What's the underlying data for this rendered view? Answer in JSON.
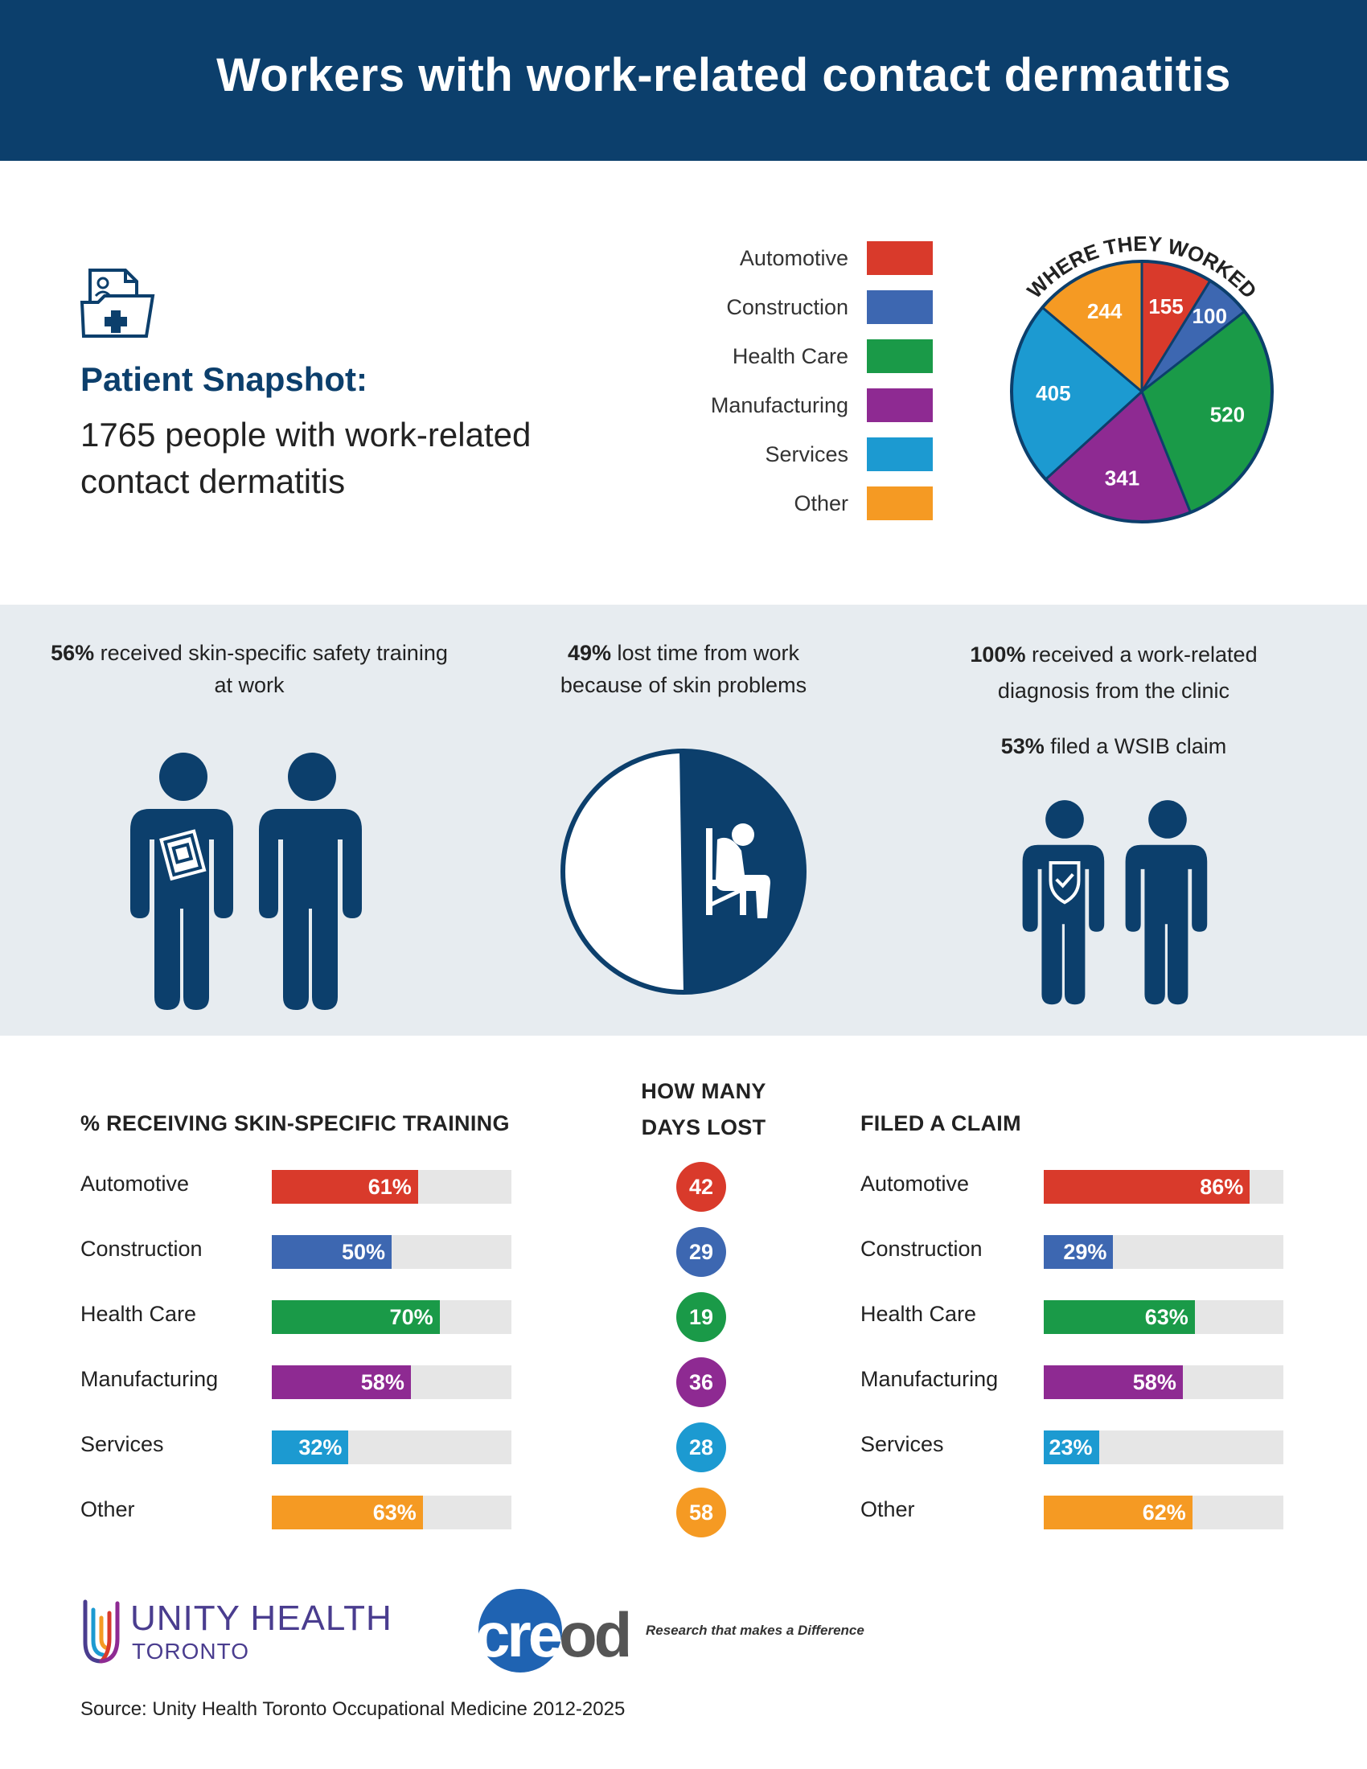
{
  "header": {
    "title": "Workers with work-related contact dermatitis"
  },
  "snapshot": {
    "title": "Patient Snapshot:",
    "text": "1765 people with work-related contact dermatitis"
  },
  "colors": {
    "Automotive": "#d93a2b",
    "Construction": "#3d67b1",
    "Health Care": "#1a9a48",
    "Manufacturing": "#8e2a92",
    "Services": "#1c9ad1",
    "Other": "#f59a23",
    "navy": "#0c3f6c"
  },
  "stats": {
    "training": {
      "pct": "56%",
      "text": " received skin-specific safety training at work"
    },
    "lost_time": {
      "pct": "49%",
      "text": " lost time from work because of skin problems"
    },
    "diagnosis": {
      "pct": "100%",
      "text": " received a work-related diagnosis from the clinic"
    },
    "wsib": {
      "pct": "53%",
      "text": " filed a WSIB claim"
    }
  },
  "icons": [
    "medical-folder-icon",
    "person-with-booklet-icon",
    "person-icon",
    "sitting-distressed-person-icon",
    "person-with-shield-icon"
  ],
  "chart_data": [
    {
      "type": "pie",
      "title": "WHERE THEY WORKED",
      "categories": [
        "Automotive",
        "Construction",
        "Health Care",
        "Manufacturing",
        "Services",
        "Other"
      ],
      "values": [
        155,
        100,
        520,
        341,
        405,
        244
      ],
      "legend": "left"
    },
    {
      "type": "bar",
      "title": "% RECEIVING SKIN-SPECIFIC TRAINING",
      "categories": [
        "Automotive",
        "Construction",
        "Health Care",
        "Manufacturing",
        "Services",
        "Other"
      ],
      "values": [
        61,
        50,
        70,
        58,
        32,
        63
      ],
      "labels": [
        "61%",
        "50%",
        "70%",
        "58%",
        "32%",
        "63%"
      ],
      "ylim": [
        0,
        100
      ]
    },
    {
      "type": "table",
      "title": "HOW MANY DAYS LOST",
      "categories": [
        "Automotive",
        "Construction",
        "Health Care",
        "Manufacturing",
        "Services",
        "Other"
      ],
      "values": [
        42,
        29,
        19,
        36,
        28,
        58
      ]
    },
    {
      "type": "bar",
      "title": "FILED A CLAIM",
      "categories": [
        "Automotive",
        "Construction",
        "Health Care",
        "Manufacturing",
        "Services",
        "Other"
      ],
      "values": [
        86,
        29,
        63,
        58,
        23,
        62
      ],
      "labels": [
        "86%",
        "29%",
        "63%",
        "58%",
        "23%",
        "62%"
      ],
      "ylim": [
        0,
        100
      ]
    }
  ],
  "days_title_lines": [
    "HOW MANY",
    "DAYS LOST"
  ],
  "footer": {
    "unity_main": "UNITY HEALTH",
    "unity_sub": "TORONTO",
    "creod_word": "creod",
    "creod_tagline": "Research that makes a Difference",
    "source": "Source: Unity Health Toronto Occupational Medicine 2012-2025"
  }
}
